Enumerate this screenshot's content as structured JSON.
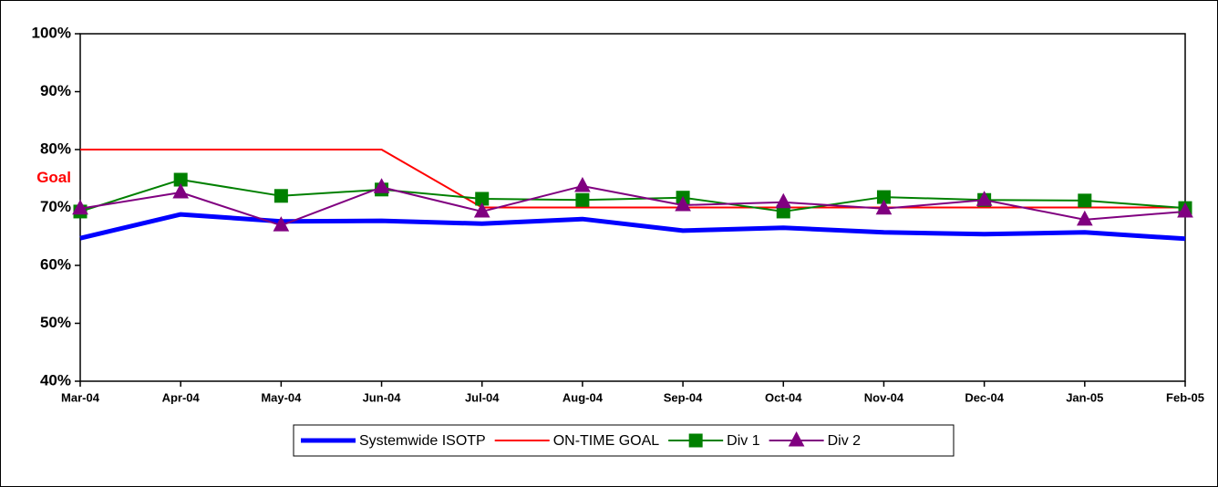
{
  "chart_data": {
    "type": "line",
    "categories": [
      "Mar-04",
      "Apr-04",
      "May-04",
      "Jun-04",
      "Jul-04",
      "Aug-04",
      "Sep-04",
      "Oct-04",
      "Nov-04",
      "Dec-04",
      "Jan-05",
      "Feb-05"
    ],
    "series": [
      {
        "name": "Systemwide ISOTP",
        "color": "#0000ff",
        "width": 5,
        "marker": "none",
        "values": [
          64.7,
          68.8,
          67.6,
          67.7,
          67.2,
          68.0,
          66.0,
          66.5,
          65.7,
          65.4,
          65.7,
          64.6
        ]
      },
      {
        "name": "ON-TIME GOAL",
        "color": "#ff0000",
        "width": 2,
        "marker": "none",
        "values": [
          80,
          80,
          80,
          80,
          70,
          70,
          70,
          70,
          70,
          70,
          70,
          70
        ]
      },
      {
        "name": "Div 1",
        "color": "#008000",
        "width": 2,
        "marker": "square",
        "values": [
          69.3,
          74.8,
          72.0,
          73.1,
          71.5,
          71.3,
          71.7,
          69.3,
          71.8,
          71.3,
          71.2,
          69.9
        ]
      },
      {
        "name": "Div 2",
        "color": "#800080",
        "width": 2,
        "marker": "triangle",
        "values": [
          69.8,
          72.6,
          66.9,
          73.5,
          69.3,
          73.7,
          70.4,
          70.9,
          69.8,
          71.3,
          67.9,
          69.3
        ]
      }
    ],
    "ylim": [
      40,
      100
    ],
    "yticks": [
      {
        "value": 40,
        "label": "40%"
      },
      {
        "value": 50,
        "label": "50%"
      },
      {
        "value": 60,
        "label": "60%"
      },
      {
        "value": 70,
        "label": "70%"
      },
      {
        "value": 80,
        "label": "80%"
      },
      {
        "value": 90,
        "label": "90%"
      },
      {
        "value": 100,
        "label": "100%"
      }
    ],
    "grid": false,
    "legend": "bottom",
    "annotations": [
      {
        "text": "Goal",
        "y": 75,
        "color": "#ff0000"
      }
    ]
  }
}
